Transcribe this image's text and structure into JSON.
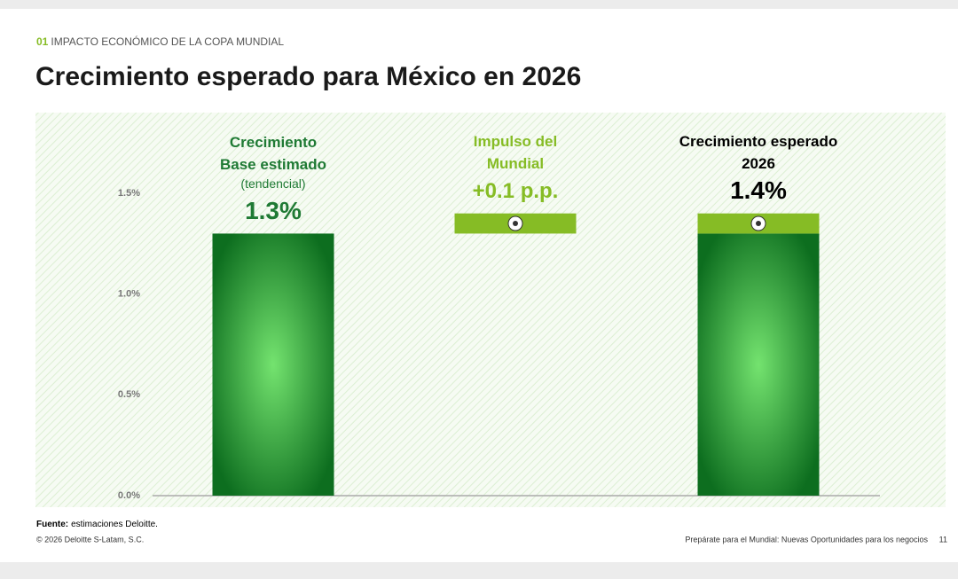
{
  "section_number": "01",
  "section": "IMPACTO ECONÓMICO DE LA COPA MUNDIAL",
  "chart_data": {
    "type": "waterfall",
    "title": "Crecimiento esperado para México en 2026",
    "categories": [
      [
        "Crecimiento",
        "Base estimado"
      ],
      [
        "Impulso del",
        "Mundial"
      ],
      [
        "Crecimiento esperado",
        "2026"
      ]
    ],
    "base_note": "(tendencial)",
    "values": [
      1.3,
      0.1,
      1.4
    ],
    "value_labels": [
      "1.3%",
      "+0.1 p.p.",
      "1.4%"
    ],
    "label_colors": [
      "#1f7a34",
      "#86bc25",
      "#000000"
    ],
    "bar_color": "#0d6e1f",
    "bar_highlight": "#74e36f",
    "impulse_color": "#86bc25",
    "ylim": [
      0,
      1.9
    ],
    "yticks": [
      {
        "value": 0,
        "label": "0.0%"
      },
      {
        "value": 0.5,
        "label": "0.5%"
      },
      {
        "value": 1.0,
        "label": "1.0%"
      },
      {
        "value": 1.5,
        "label": "1.5%"
      }
    ]
  },
  "source_label": "Fuente:",
  "source": "estimaciones Deloitte.",
  "copyright": "© 2026 Deloitte S-Latam, S.C.",
  "footer": "Prepárate para el Mundial: Nuevas Oportunidades para los negocios",
  "page_number": "11"
}
